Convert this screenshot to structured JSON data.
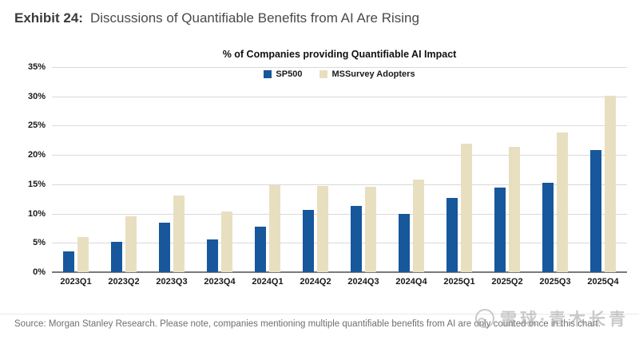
{
  "header": {
    "exhibit_label": "Exhibit 24:",
    "title": "Discussions of Quantifiable Benefits from AI Are Rising"
  },
  "chart_data": {
    "type": "bar",
    "title": "% of Companies providing Quantifiable AI Impact",
    "categories": [
      "2023Q1",
      "2023Q2",
      "2023Q3",
      "2023Q4",
      "2024Q1",
      "2024Q2",
      "2024Q3",
      "2024Q4",
      "2025Q1",
      "2025Q2",
      "2025Q3",
      "2025Q4"
    ],
    "series": [
      {
        "name": "SP500",
        "color": "#17579c",
        "values": [
          3.6,
          5.2,
          8.4,
          5.6,
          7.7,
          10.6,
          11.3,
          9.9,
          12.7,
          14.4,
          15.3,
          20.9
        ]
      },
      {
        "name": "MSSurvey Adopters",
        "color": "#e8dfc1",
        "values": [
          6.0,
          9.6,
          13.1,
          10.4,
          14.9,
          14.7,
          14.6,
          15.8,
          21.9,
          21.4,
          23.9,
          30.1
        ]
      }
    ],
    "ylim": [
      0,
      35
    ],
    "ytick_step": 5,
    "ytick_labels": [
      "0%",
      "5%",
      "10%",
      "15%",
      "20%",
      "25%",
      "30%",
      "35%"
    ],
    "grid": true,
    "legend_position": "top-center"
  },
  "footer": {
    "source": "Source: Morgan Stanley Research. Please note, companies mentioning multiple quantifiable benefits from AI are only counted once in this chart.",
    "watermark": "雪球·青木长青"
  },
  "colors": {
    "sp500_blue": "#17579c",
    "adopters_tan": "#e8dfc1",
    "gridline": "#d9d9d9",
    "axis": "#7a7a7a",
    "watermark_gray": "#c7c7c7"
  }
}
